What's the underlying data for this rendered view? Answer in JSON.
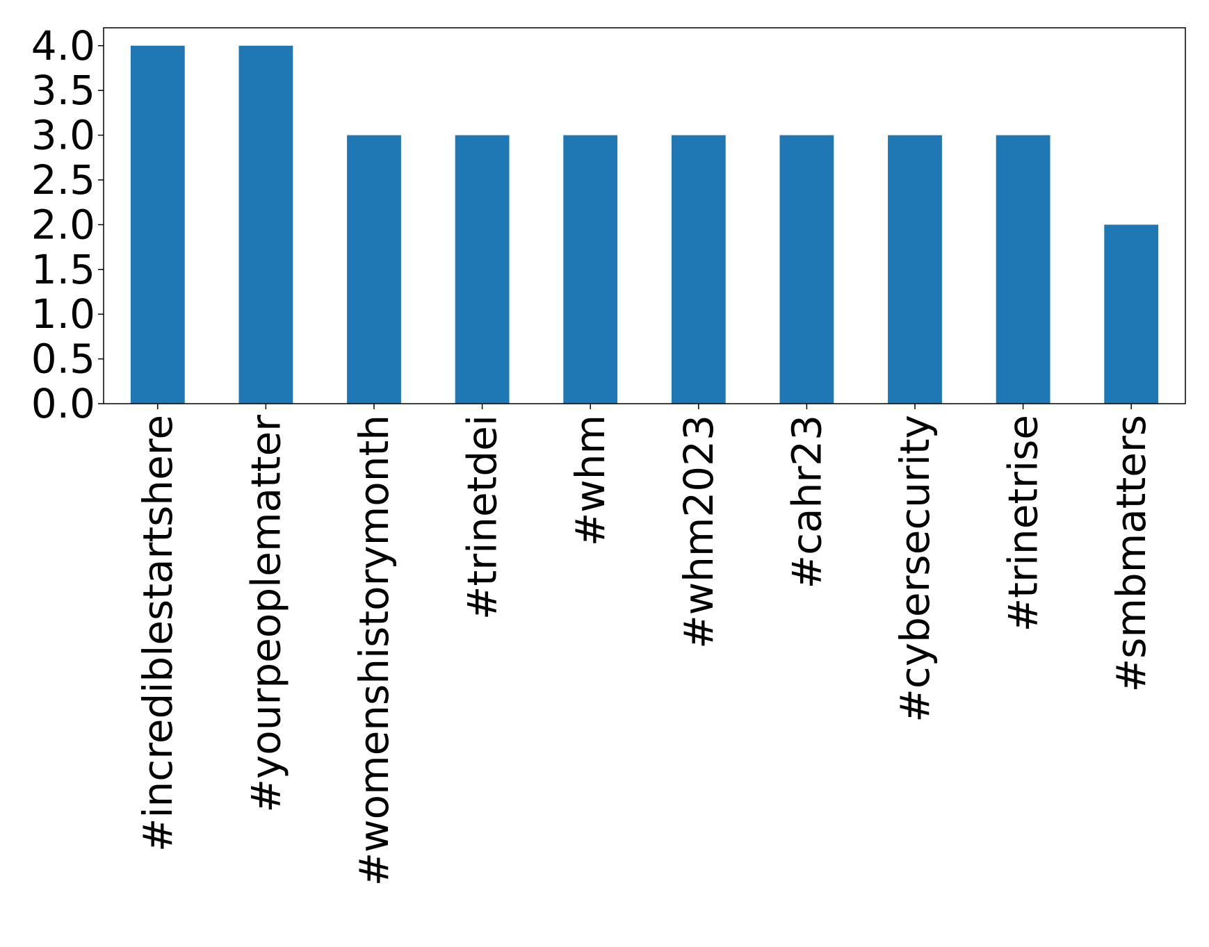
{
  "chart_data": {
    "type": "bar",
    "title": "",
    "xlabel": "",
    "ylabel": "",
    "categories": [
      "#incrediblestartshere",
      "#yourpeoplematter",
      "#womenshistorymonth",
      "#trinetdei",
      "#whm",
      "#whm2023",
      "#cahr23",
      "#cybersecurity",
      "#trinetrise",
      "#smbmatters"
    ],
    "values": [
      4,
      4,
      3,
      3,
      3,
      3,
      3,
      3,
      3,
      2
    ],
    "ylim": [
      0,
      4.2
    ],
    "yticks": [
      "0.0",
      "0.5",
      "1.0",
      "1.5",
      "2.0",
      "2.5",
      "3.0",
      "3.5",
      "4.0"
    ],
    "grid": false,
    "legend": "none",
    "bar_color": "#1f77b4"
  }
}
